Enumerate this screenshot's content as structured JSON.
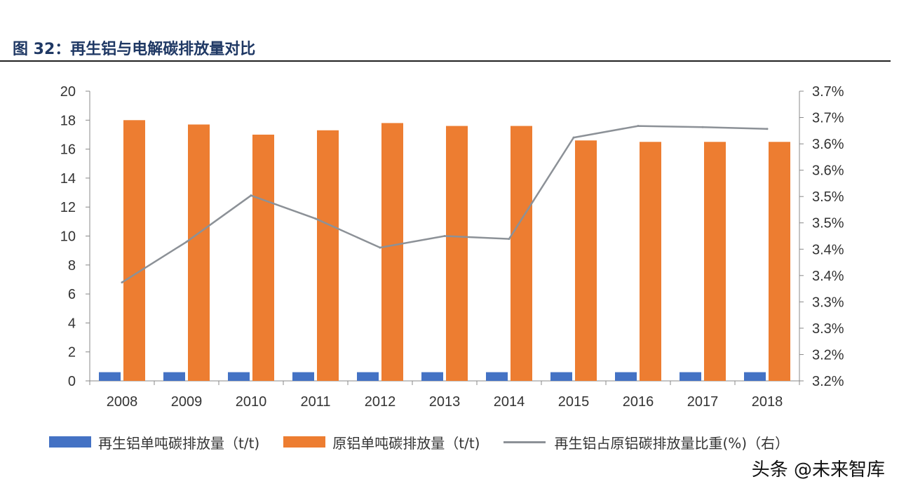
{
  "header": {
    "title": "图 32：再生铝与电解碳排放量对比"
  },
  "chart_data": {
    "type": "bar",
    "categories": [
      "2008",
      "2009",
      "2010",
      "2011",
      "2012",
      "2013",
      "2014",
      "2015",
      "2016",
      "2017",
      "2018"
    ],
    "series": [
      {
        "name": "再生铝单吨碳排放量（t/t)",
        "type": "bar",
        "axis": "left",
        "color": "#4472c4",
        "values": [
          0.6,
          0.6,
          0.6,
          0.6,
          0.6,
          0.6,
          0.6,
          0.6,
          0.6,
          0.6,
          0.6
        ]
      },
      {
        "name": "原铝单吨碳排放量（t/t)",
        "type": "bar",
        "axis": "left",
        "color": "#ed7d31",
        "values": [
          18.0,
          17.7,
          17.0,
          17.3,
          17.8,
          17.6,
          17.6,
          16.6,
          16.5,
          16.5,
          16.5
        ]
      },
      {
        "name": "再生铝占原铝碳排放量比重(%)（右）",
        "type": "line",
        "axis": "right",
        "color": "#8c9197",
        "values": [
          3.37,
          3.44,
          3.52,
          3.48,
          3.43,
          3.45,
          3.445,
          3.62,
          3.64,
          3.638,
          3.635
        ]
      }
    ],
    "y_left": {
      "min": 0,
      "max": 20,
      "ticks": [
        "0",
        "2",
        "4",
        "6",
        "8",
        "10",
        "12",
        "14",
        "16",
        "18",
        "20"
      ]
    },
    "y_right": {
      "min": 3.2,
      "max": 3.7,
      "ticks": [
        "3.2%",
        "3.2%",
        "3.3%",
        "3.3%",
        "3.4%",
        "3.4%",
        "3.5%",
        "3.5%",
        "3.6%",
        "3.6%",
        "3.7%",
        "3.7%"
      ]
    },
    "grid": false
  },
  "watermark": "头条 @未来智库"
}
